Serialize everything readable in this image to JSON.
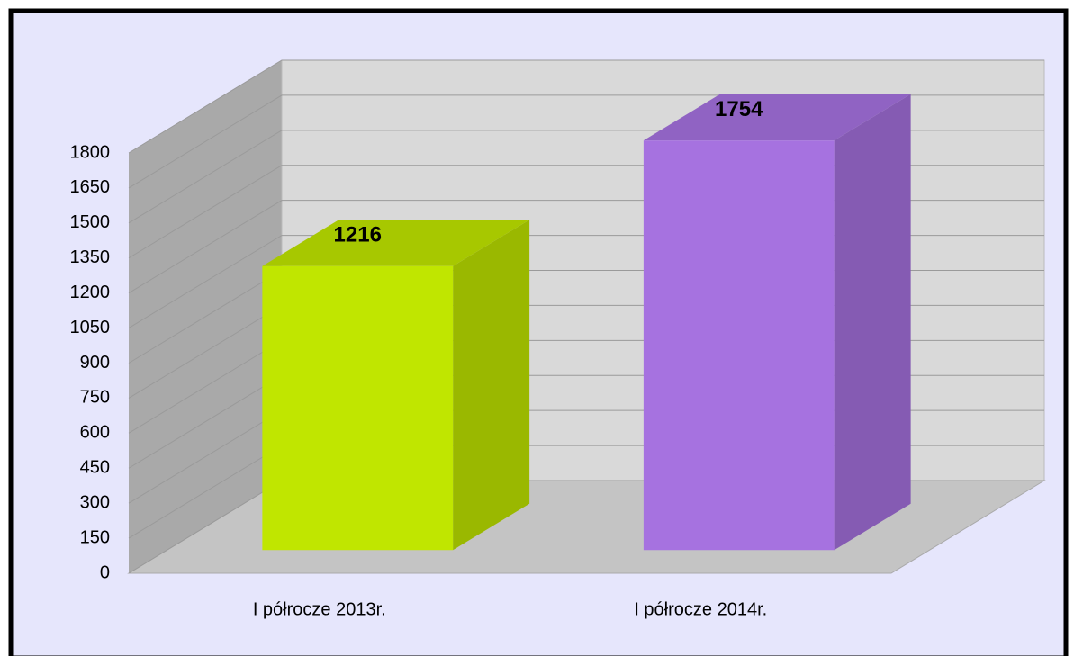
{
  "chart_data": {
    "type": "bar",
    "categories": [
      "I półrocze 2013r.",
      "I półrocze 2014r."
    ],
    "values": [
      1216,
      1754
    ],
    "colors": [
      "#c0e600",
      "#a672e0"
    ],
    "ylim": [
      0,
      1800
    ],
    "yticks": [
      0,
      150,
      300,
      450,
      600,
      750,
      900,
      1050,
      1200,
      1350,
      1500,
      1650,
      1800
    ],
    "grid": true
  }
}
